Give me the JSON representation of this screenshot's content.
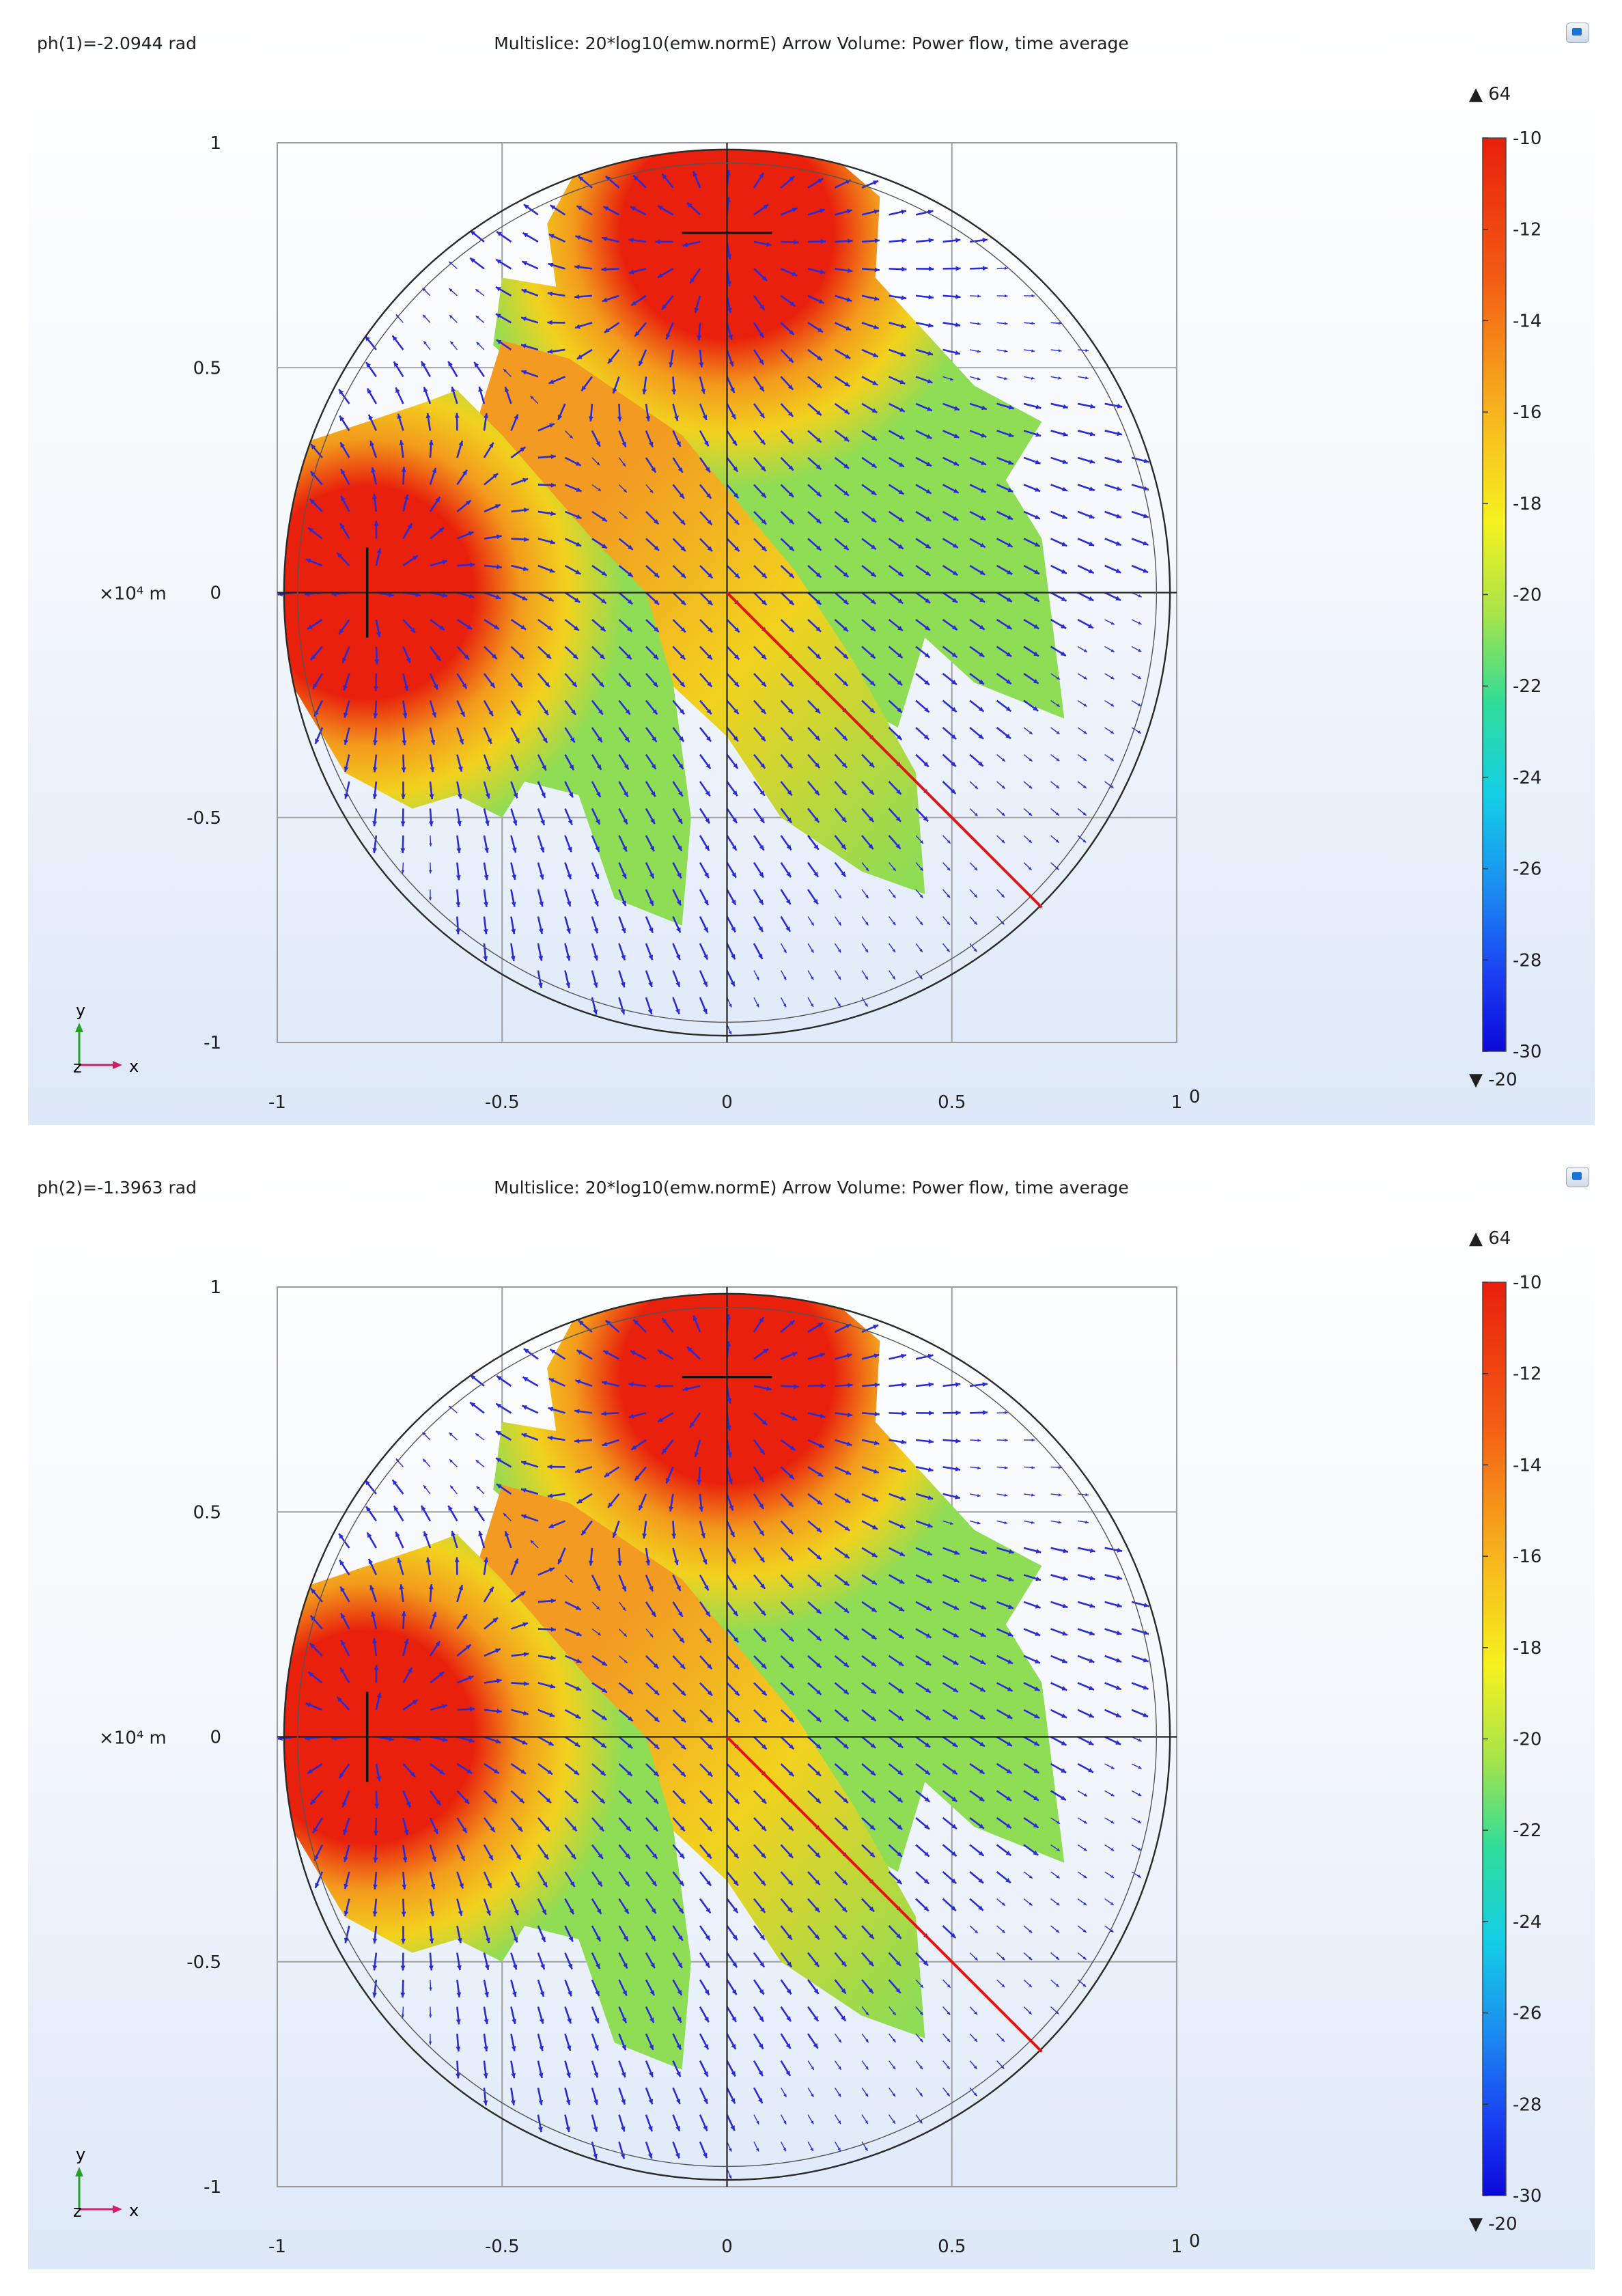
{
  "chart_data": [
    {
      "type": "heatmap",
      "phase_label": "ph(1)=-2.0944 rad",
      "title": "Multislice: 20*log10(emw.normE)  Arrow Volume: Power flow, time average",
      "x_ticks": [
        "-1",
        "-0.5",
        "0",
        "0.5",
        "1"
      ],
      "y_ticks": [
        "1",
        "0.5",
        "0",
        "-0.5",
        "-1"
      ],
      "xlim": [
        -1,
        1
      ],
      "ylim": [
        -1,
        1
      ],
      "x_exponent": "0",
      "y_axis_unit": "×10⁴ m",
      "colorbar": {
        "max_marker": "▲ 64",
        "min_marker": "▼ -20",
        "ticks": [
          "-10",
          "-12",
          "-14",
          "-16",
          "-18",
          "-20",
          "-22",
          "-24",
          "-26",
          "-28",
          "-30"
        ],
        "range": [
          -30,
          -10
        ]
      },
      "sources": [
        {
          "name": "top-dipole",
          "x": 0.0,
          "y": 0.8
        },
        {
          "name": "left-dipole",
          "x": -0.8,
          "y": 0.0
        }
      ],
      "probe_line": {
        "from": [
          0.0,
          0.0
        ],
        "to": [
          0.7,
          -0.7
        ]
      },
      "axes_triad": {
        "y": "y",
        "x": "x",
        "z": "z"
      }
    },
    {
      "type": "heatmap",
      "phase_label": "ph(2)=-1.3963 rad",
      "title": "Multislice: 20*log10(emw.normE)  Arrow Volume: Power flow, time average",
      "x_ticks": [
        "-1",
        "-0.5",
        "0",
        "0.5",
        "1"
      ],
      "y_ticks": [
        "1",
        "0.5",
        "0",
        "-0.5",
        "-1"
      ],
      "xlim": [
        -1,
        1
      ],
      "ylim": [
        -1,
        1
      ],
      "x_exponent": "0",
      "y_axis_unit": "×10⁴ m",
      "colorbar": {
        "max_marker": "▲ 64",
        "min_marker": "▼ -20",
        "ticks": [
          "-10",
          "-12",
          "-14",
          "-16",
          "-18",
          "-20",
          "-22",
          "-24",
          "-26",
          "-28",
          "-30"
        ],
        "range": [
          -30,
          -10
        ]
      },
      "sources": [
        {
          "name": "top-dipole",
          "x": 0.0,
          "y": 0.8
        },
        {
          "name": "left-dipole",
          "x": -0.8,
          "y": 0.0
        }
      ],
      "probe_line": {
        "from": [
          0.0,
          0.0
        ],
        "to": [
          0.7,
          -0.7
        ]
      },
      "axes_triad": {
        "y": "y",
        "x": "x",
        "z": "z"
      }
    }
  ],
  "colors": {
    "arrow": "#2b2bd4",
    "probe_line": "#e01515",
    "field_high": "#e8200c",
    "field_mid": "#f2d21e",
    "field_low": "#8fdc55"
  }
}
